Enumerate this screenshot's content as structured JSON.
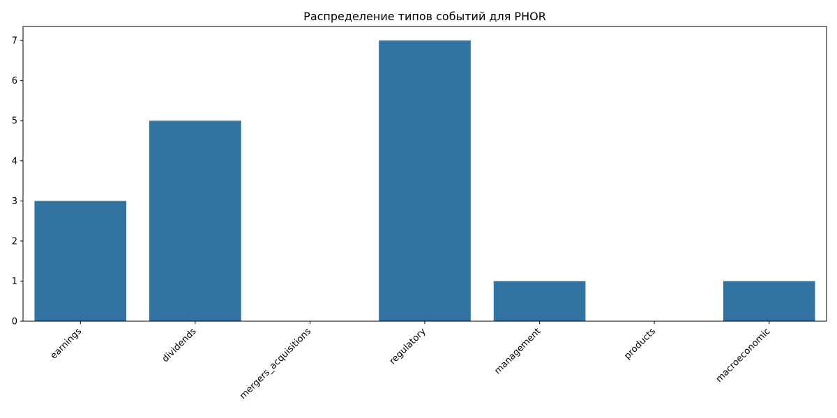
{
  "chart_data": {
    "type": "bar",
    "title": "Распределение типов событий для PHOR",
    "xlabel": "",
    "ylabel": "",
    "categories": [
      "earnings",
      "dividends",
      "mergers_acquisitions",
      "regulatory",
      "management",
      "products",
      "macroeconomic"
    ],
    "values": [
      3,
      5,
      0,
      7,
      1,
      0,
      1
    ],
    "ylim": [
      0,
      7.35
    ],
    "yticks": [
      0,
      1,
      2,
      3,
      4,
      5,
      6,
      7
    ],
    "x_tick_rotation_deg": 45,
    "grid": false,
    "legend": "none",
    "bar_color": "#3274a1"
  }
}
